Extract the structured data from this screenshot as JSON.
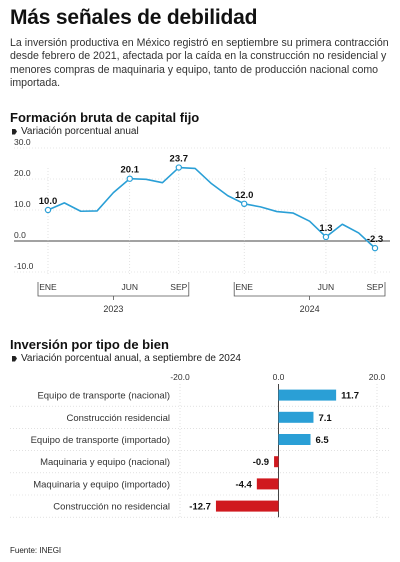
{
  "title": "Más señales de debilidad",
  "intro": "La inversión productiva en México registró en septiembre su primera contracción desde febrero de 2021, afectada por la caída en la construcción no residencial y menores compras de maquinaria y equipo, tanto de producción nacional como importada.",
  "source": "Fuente: INEGI",
  "colors": {
    "line": "#2a9fd6",
    "positive": "#2a9fd6",
    "negative": "#d0191f",
    "axis": "#444444",
    "grid": "#cfcfcf"
  },
  "chart_data": [
    {
      "type": "line",
      "title": "Formación bruta de capital fijo",
      "legend": "Variación porcentual anual",
      "y_ticks": [
        "30.0",
        "20.0",
        "10.0",
        "0.0",
        "-10.0"
      ],
      "y_tick_values": [
        30,
        20,
        10,
        0,
        -10
      ],
      "ylim": [
        -10,
        30
      ],
      "x_tick_labels": [
        "ENE",
        "JUN",
        "SEP",
        "ENE",
        "JUN",
        "SEP"
      ],
      "x_tick_index": [
        0,
        5,
        8,
        12,
        17,
        20
      ],
      "year_labels": [
        "2023",
        "2024"
      ],
      "x": [
        "2023-01",
        "2023-02",
        "2023-03",
        "2023-04",
        "2023-05",
        "2023-06",
        "2023-07",
        "2023-08",
        "2023-09",
        "2023-10",
        "2023-11",
        "2023-12",
        "2024-01",
        "2024-02",
        "2024-03",
        "2024-04",
        "2024-05",
        "2024-06",
        "2024-07",
        "2024-08",
        "2024-09"
      ],
      "values": [
        10.0,
        12.3,
        9.6,
        9.7,
        15.6,
        20.1,
        19.9,
        18.8,
        23.7,
        23.4,
        18.5,
        14.6,
        12.0,
        11.0,
        9.5,
        9.0,
        6.4,
        1.3,
        5.4,
        2.6,
        -2.3
      ],
      "labels": [
        {
          "index": 0,
          "text": "10.0"
        },
        {
          "index": 5,
          "text": "20.1"
        },
        {
          "index": 8,
          "text": "23.7"
        },
        {
          "index": 12,
          "text": "12.0"
        },
        {
          "index": 17,
          "text": "1.3"
        },
        {
          "index": 20,
          "text": "-2.3"
        }
      ]
    },
    {
      "type": "bar",
      "orientation": "horizontal",
      "title": "Inversión por tipo de bien",
      "legend": "Variación porcentual anual, a septiembre de 2024",
      "x_ticks": [
        "-20.0",
        "0.0",
        "20.0"
      ],
      "x_tick_values": [
        -20,
        0,
        20
      ],
      "xlim": [
        -20,
        20
      ],
      "categories": [
        "Equipo de transporte (nacional)",
        "Construcción residencial",
        "Equipo de transporte (importado)",
        "Maquinaria y equipo (nacional)",
        "Maquinaria y equipo (importado)",
        "Construcción no residencial"
      ],
      "values": [
        11.7,
        7.1,
        6.5,
        -0.9,
        -4.4,
        -12.7
      ],
      "value_labels": [
        "11.7",
        "7.1",
        "6.5",
        "-0.9",
        "-4.4",
        "-12.7"
      ]
    }
  ]
}
